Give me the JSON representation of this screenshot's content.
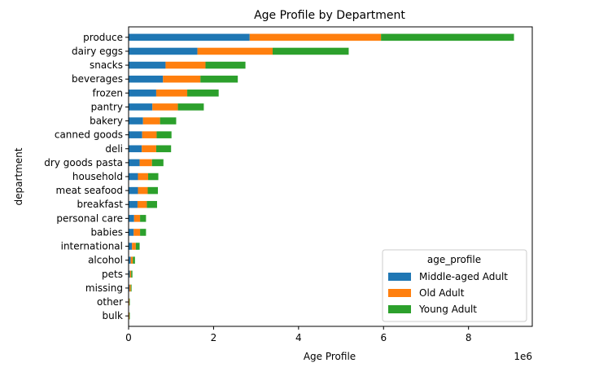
{
  "chart_data": {
    "type": "bar",
    "orientation": "horizontal",
    "stacked": true,
    "title": "Age Profile by Department",
    "xlabel": "Age Profile",
    "ylabel": "department",
    "x_offset_label": "1e6",
    "xlim": [
      0,
      9.5
    ],
    "x_scale": 1000000,
    "x_ticks": [
      0,
      2,
      4,
      6,
      8
    ],
    "grid": false,
    "legend": {
      "title": "age_profile",
      "placement": "lower-right"
    },
    "categories": [
      "produce",
      "dairy eggs",
      "snacks",
      "beverages",
      "frozen",
      "pantry",
      "bakery",
      "canned goods",
      "deli",
      "dry goods pasta",
      "household",
      "meat seafood",
      "breakfast",
      "personal care",
      "babies",
      "international",
      "alcohol",
      "pets",
      "missing",
      "other",
      "bulk"
    ],
    "series": [
      {
        "name": "Middle-aged Adult",
        "color": "#1f77b4",
        "values": [
          2.85,
          1.62,
          0.87,
          0.81,
          0.65,
          0.56,
          0.34,
          0.32,
          0.31,
          0.26,
          0.22,
          0.22,
          0.21,
          0.13,
          0.12,
          0.08,
          0.05,
          0.03,
          0.02,
          0.01,
          0.01
        ]
      },
      {
        "name": "Old Adult",
        "color": "#ff7f0e",
        "values": [
          3.09,
          1.77,
          0.94,
          0.88,
          0.73,
          0.6,
          0.4,
          0.34,
          0.34,
          0.29,
          0.24,
          0.23,
          0.22,
          0.14,
          0.15,
          0.09,
          0.05,
          0.03,
          0.03,
          0.01,
          0.01
        ]
      },
      {
        "name": "Young Adult",
        "color": "#2ca02c",
        "values": [
          3.13,
          1.79,
          0.94,
          0.88,
          0.74,
          0.61,
          0.38,
          0.35,
          0.35,
          0.27,
          0.24,
          0.24,
          0.24,
          0.14,
          0.14,
          0.09,
          0.05,
          0.03,
          0.02,
          0.01,
          0.01
        ]
      }
    ]
  }
}
